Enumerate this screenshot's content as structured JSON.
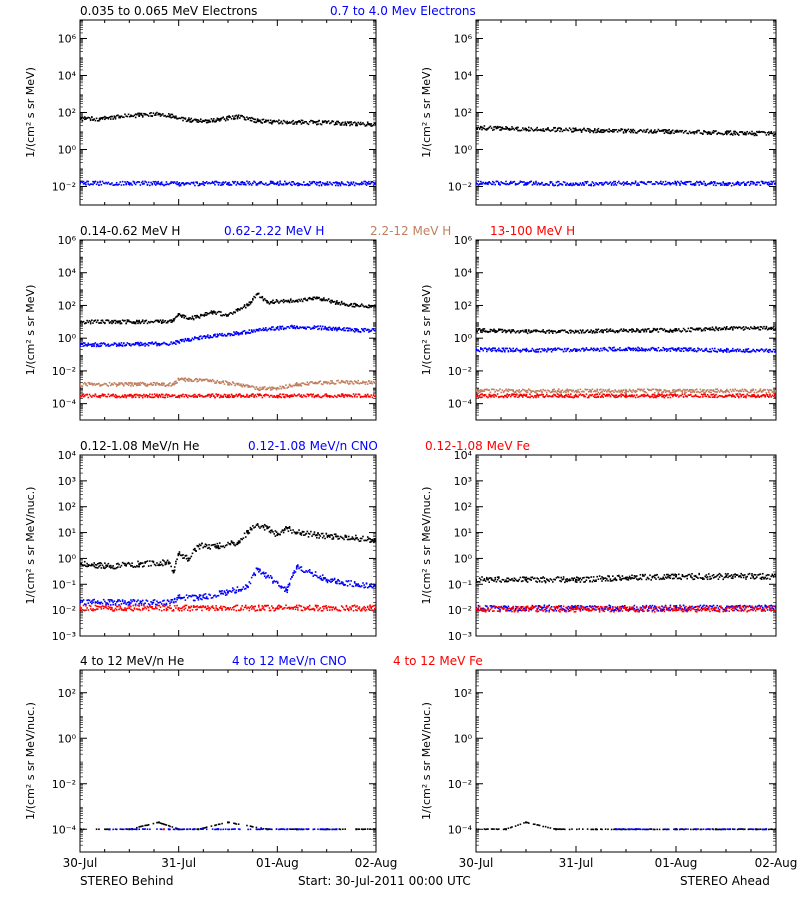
{
  "chart_data": [
    {
      "type": "scatter",
      "panel": "electrons-behind",
      "spacecraft": "STEREO Behind",
      "yscale": "log",
      "ylim": [
        0.001,
        10000000
      ],
      "ylabel": "1/(cm² s sr MeV)",
      "ytick_labels": [
        "10⁶",
        "10⁴",
        "10²",
        "10⁰",
        "10⁻²"
      ],
      "ytick_values": [
        1000000,
        10000,
        100,
        1,
        0.01
      ],
      "xlim": [
        0,
        3
      ],
      "legend": [
        {
          "label": "0.035 to 0.065 MeV Electrons",
          "color": "#000000"
        },
        {
          "label": "0.7 to 4.0 Mev Electrons",
          "color": "#0000ff"
        }
      ],
      "series": [
        {
          "name": "0.035 to 0.065 MeV Electrons",
          "color": "#000000",
          "x": [
            0,
            0.2,
            0.4,
            0.6,
            0.8,
            0.95,
            1.1,
            1.25,
            1.4,
            1.6,
            1.8,
            1.95,
            2.2,
            2.5,
            2.8,
            3.0
          ],
          "y": [
            45,
            45,
            60,
            70,
            85,
            60,
            40,
            35,
            40,
            60,
            35,
            30,
            30,
            28,
            25,
            22
          ]
        },
        {
          "name": "0.7 to 4.0 Mev Electrons",
          "color": "#0000ff",
          "x": [
            0,
            0.5,
            1.0,
            1.5,
            2.0,
            2.5,
            3.0
          ],
          "y": [
            0.015,
            0.015,
            0.014,
            0.015,
            0.015,
            0.014,
            0.015
          ]
        }
      ]
    },
    {
      "type": "scatter",
      "panel": "electrons-ahead",
      "spacecraft": "STEREO Ahead",
      "yscale": "log",
      "ylim": [
        0.001,
        10000000
      ],
      "ylabel": "1/(cm² s sr MeV)",
      "ytick_labels": [
        "10⁶",
        "10⁴",
        "10²",
        "10⁰",
        "10⁻²"
      ],
      "ytick_values": [
        1000000,
        10000,
        100,
        1,
        0.01
      ],
      "xlim": [
        0,
        3
      ],
      "series": [
        {
          "name": "0.035 to 0.065 MeV Electrons",
          "color": "#000000",
          "x": [
            0,
            0.5,
            1.0,
            1.5,
            2.0,
            2.5,
            3.0
          ],
          "y": [
            15,
            13,
            11,
            10,
            9,
            8,
            7
          ]
        },
        {
          "name": "0.7 to 4.0 Mev Electrons",
          "color": "#0000ff",
          "x": [
            0,
            0.5,
            1.0,
            1.5,
            2.0,
            2.5,
            3.0
          ],
          "y": [
            0.015,
            0.015,
            0.014,
            0.015,
            0.015,
            0.014,
            0.015
          ]
        }
      ]
    },
    {
      "type": "scatter",
      "panel": "protons-behind",
      "spacecraft": "STEREO Behind",
      "yscale": "log",
      "ylim": [
        1e-05,
        1000000
      ],
      "ylabel": "1/(cm² s sr MeV)",
      "ytick_labels": [
        "10⁶",
        "10⁴",
        "10²",
        "10⁰",
        "10⁻²",
        "10⁻⁴"
      ],
      "ytick_values": [
        1000000,
        10000,
        100,
        1,
        0.01,
        0.0001
      ],
      "xlim": [
        0,
        3
      ],
      "legend": [
        {
          "label": "0.14-0.62 MeV H",
          "color": "#000000"
        },
        {
          "label": "0.62-2.22 MeV H",
          "color": "#0000ff"
        },
        {
          "label": "2.2-12 MeV H",
          "color": "#c08060"
        },
        {
          "label": "13-100 MeV H",
          "color": "#ff0000"
        }
      ],
      "series": [
        {
          "name": "0.14-0.62 MeV H",
          "color": "#000000",
          "x": [
            0,
            0.4,
            0.8,
            0.95,
            1.0,
            1.1,
            1.2,
            1.35,
            1.5,
            1.6,
            1.7,
            1.8,
            1.9,
            2.0,
            2.2,
            2.4,
            2.6,
            2.8,
            3.0
          ],
          "y": [
            10,
            10,
            10,
            12,
            30,
            15,
            20,
            40,
            25,
            60,
            100,
            500,
            150,
            180,
            200,
            300,
            150,
            100,
            90
          ]
        },
        {
          "name": "0.62-2.22 MeV H",
          "color": "#0000ff",
          "x": [
            0,
            0.4,
            0.8,
            0.95,
            1.0,
            1.1,
            1.2,
            1.4,
            1.6,
            1.8,
            2.0,
            2.2,
            2.5,
            2.8,
            3.0
          ],
          "y": [
            0.4,
            0.4,
            0.45,
            0.5,
            0.6,
            0.8,
            1,
            1.5,
            2,
            3,
            4,
            5,
            4,
            3,
            3
          ]
        },
        {
          "name": "2.2-12 MeV H",
          "color": "#c08060",
          "x": [
            0,
            0.4,
            0.8,
            0.95,
            1.0,
            1.3,
            1.6,
            1.8,
            2.0,
            2.2,
            2.5,
            2.8,
            3.0
          ],
          "y": [
            0.0015,
            0.0015,
            0.0015,
            0.0015,
            0.003,
            0.0025,
            0.0015,
            0.0008,
            0.0009,
            0.0015,
            0.002,
            0.002,
            0.002
          ]
        },
        {
          "name": "13-100 MeV H",
          "color": "#ff0000",
          "x": [
            0,
            0.5,
            1.0,
            1.5,
            2.0,
            2.5,
            3.0
          ],
          "y": [
            0.0003,
            0.0003,
            0.0003,
            0.0003,
            0.0003,
            0.0003,
            0.0003
          ]
        }
      ]
    },
    {
      "type": "scatter",
      "panel": "protons-ahead",
      "spacecraft": "STEREO Ahead",
      "yscale": "log",
      "ylim": [
        1e-05,
        1000000
      ],
      "ylabel": "1/(cm² s sr MeV)",
      "ytick_labels": [
        "10⁶",
        "10⁴",
        "10²",
        "10⁰",
        "10⁻²",
        "10⁻⁴"
      ],
      "ytick_values": [
        1000000,
        10000,
        100,
        1,
        0.01,
        0.0001
      ],
      "xlim": [
        0,
        3
      ],
      "series": [
        {
          "name": "0.14-0.62 MeV H",
          "color": "#000000",
          "x": [
            0,
            0.5,
            1.0,
            1.5,
            2.0,
            2.5,
            3.0
          ],
          "y": [
            3,
            2.5,
            2.5,
            3,
            3,
            4,
            4
          ]
        },
        {
          "name": "0.62-2.22 MeV H",
          "color": "#0000ff",
          "x": [
            0,
            0.5,
            1.0,
            1.5,
            2.0,
            2.5,
            3.0
          ],
          "y": [
            0.2,
            0.18,
            0.2,
            0.22,
            0.2,
            0.18,
            0.17
          ]
        },
        {
          "name": "2.2-12 MeV H",
          "color": "#c08060",
          "x": [
            0,
            0.5,
            1.0,
            1.5,
            2.0,
            2.5,
            3.0
          ],
          "y": [
            0.0006,
            0.0006,
            0.0006,
            0.0006,
            0.0006,
            0.0006,
            0.0006
          ]
        },
        {
          "name": "13-100 MeV H",
          "color": "#ff0000",
          "x": [
            0,
            0.5,
            1.0,
            1.5,
            2.0,
            2.5,
            3.0
          ],
          "y": [
            0.0003,
            0.0003,
            0.0003,
            0.0003,
            0.0003,
            0.0003,
            0.0003
          ]
        }
      ]
    },
    {
      "type": "scatter",
      "panel": "ions-low-behind",
      "spacecraft": "STEREO Behind",
      "yscale": "log",
      "ylim": [
        0.001,
        10000
      ],
      "ylabel": "1/(cm² s sr MeV/nuc.)",
      "ytick_labels": [
        "10⁴",
        "10³",
        "10²",
        "10¹",
        "10⁰",
        "10⁻¹",
        "10⁻²",
        "10⁻³"
      ],
      "ytick_values": [
        10000,
        1000,
        100,
        10,
        1,
        0.1,
        0.01,
        0.001
      ],
      "xlim": [
        0,
        3
      ],
      "legend": [
        {
          "label": "0.12-1.08 MeV/n He",
          "color": "#000000"
        },
        {
          "label": "0.12-1.08 MeV/n CNO",
          "color": "#0000ff"
        },
        {
          "label": "0.12-1.08 MeV Fe",
          "color": "#ff0000"
        }
      ],
      "series": [
        {
          "name": "0.12-1.08 MeV/n He",
          "color": "#000000",
          "x": [
            0,
            0.3,
            0.6,
            0.9,
            0.95,
            1.0,
            1.1,
            1.2,
            1.4,
            1.6,
            1.7,
            1.8,
            1.9,
            2.0,
            2.1,
            2.2,
            2.4,
            2.6,
            2.8,
            3.0
          ],
          "y": [
            0.6,
            0.5,
            0.6,
            0.7,
            0.3,
            1.5,
            1,
            3,
            3,
            4,
            10,
            20,
            15,
            8,
            15,
            10,
            8,
            7,
            6,
            5
          ]
        },
        {
          "name": "0.12-1.08 MeV/n CNO",
          "color": "#0000ff",
          "x": [
            0,
            0.5,
            0.95,
            1.0,
            1.2,
            1.5,
            1.7,
            1.8,
            1.9,
            2.1,
            2.2,
            2.5,
            2.8,
            3.0
          ],
          "y": [
            0.02,
            0.02,
            0.02,
            0.03,
            0.03,
            0.05,
            0.08,
            0.4,
            0.2,
            0.06,
            0.5,
            0.15,
            0.1,
            0.08
          ]
        },
        {
          "name": "0.12-1.08 MeV Fe",
          "color": "#ff0000",
          "x": [
            0,
            0.5,
            1.0,
            1.5,
            2.0,
            2.5,
            3.0
          ],
          "y": [
            0.012,
            0.012,
            0.012,
            0.012,
            0.012,
            0.012,
            0.012
          ]
        }
      ]
    },
    {
      "type": "scatter",
      "panel": "ions-low-ahead",
      "spacecraft": "STEREO Ahead",
      "yscale": "log",
      "ylim": [
        0.001,
        10000
      ],
      "ylabel": "1/(cm² s sr MeV/nuc.)",
      "ytick_labels": [
        "10⁴",
        "10³",
        "10²",
        "10¹",
        "10⁰",
        "10⁻¹",
        "10⁻²",
        "10⁻³"
      ],
      "ytick_values": [
        10000,
        1000,
        100,
        10,
        1,
        0.1,
        0.01,
        0.001
      ],
      "xlim": [
        0,
        3
      ],
      "series": [
        {
          "name": "0.12-1.08 MeV/n He",
          "color": "#000000",
          "x": [
            0,
            0.5,
            1.0,
            1.5,
            2.0,
            2.5,
            3.0
          ],
          "y": [
            0.15,
            0.15,
            0.15,
            0.18,
            0.2,
            0.2,
            0.2
          ]
        },
        {
          "name": "0.12-1.08 MeV/n CNO",
          "color": "#0000ff",
          "x": [
            0,
            0.5,
            1.0,
            1.5,
            2.0,
            2.5,
            3.0
          ],
          "y": [
            0.012,
            0.012,
            0.012,
            0.012,
            0.012,
            0.012,
            0.012
          ]
        },
        {
          "name": "0.12-1.08 MeV Fe",
          "color": "#ff0000",
          "x": [
            0,
            0.5,
            1.0,
            1.5,
            2.0,
            2.5,
            3.0
          ],
          "y": [
            0.011,
            0.011,
            0.011,
            0.011,
            0.011,
            0.011,
            0.011
          ]
        }
      ]
    },
    {
      "type": "scatter",
      "panel": "ions-high-behind",
      "spacecraft": "STEREO Behind",
      "yscale": "log",
      "ylim": [
        1e-05,
        1000
      ],
      "ylabel": "1/(cm² s sr MeV/nuc.)",
      "ytick_labels": [
        "10²",
        "10⁰",
        "10⁻²",
        "10⁻⁴"
      ],
      "ytick_values": [
        100,
        1,
        0.01,
        0.0001
      ],
      "xlim": [
        0,
        3
      ],
      "xtick_labels": [
        "30-Jul",
        "31-Jul",
        "01-Aug",
        "02-Aug"
      ],
      "xtick_values": [
        0,
        1,
        2,
        3
      ],
      "legend": [
        {
          "label": "4 to 12 MeV/n He",
          "color": "#000000"
        },
        {
          "label": "4 to 12 MeV/n CNO",
          "color": "#0000ff"
        },
        {
          "label": "4 to 12 MeV Fe",
          "color": "#ff0000"
        }
      ],
      "series": [
        {
          "name": "4 to 12 MeV/n He",
          "color": "#000000",
          "x": [
            0,
            0.5,
            0.8,
            1.0,
            1.2,
            1.5,
            1.9,
            2.2,
            2.5,
            2.8,
            3.0
          ],
          "y": [
            0.0001,
            0.0001,
            0.0002,
            0.0001,
            0.0001,
            0.0002,
            0.0001,
            0.0001,
            0.0001,
            0.0001,
            0.0001
          ]
        },
        {
          "name": "4 to 12 MeV/n CNO",
          "color": "#0000ff",
          "x": [
            0.3,
            0.9,
            1.4,
            2.1,
            2.6
          ],
          "y": [
            0.0001,
            0.0001,
            0.0001,
            0.0001,
            0.0001
          ]
        },
        {
          "name": "4 to 12 MeV Fe",
          "color": "#ff0000",
          "x": [
            0.85
          ],
          "y": [
            0.0001
          ]
        }
      ]
    },
    {
      "type": "scatter",
      "panel": "ions-high-ahead",
      "spacecraft": "STEREO Ahead",
      "yscale": "log",
      "ylim": [
        1e-05,
        1000
      ],
      "ylabel": "1/(cm² s sr MeV/nuc.)",
      "ytick_labels": [
        "10²",
        "10⁰",
        "10⁻²",
        "10⁻⁴"
      ],
      "ytick_values": [
        100,
        1,
        0.01,
        0.0001
      ],
      "xlim": [
        0,
        3
      ],
      "xtick_labels": [
        "30-Jul",
        "31-Jul",
        "01-Aug",
        "02-Aug"
      ],
      "xtick_values": [
        0,
        1,
        2,
        3
      ],
      "series": [
        {
          "name": "4 to 12 MeV/n He",
          "color": "#000000",
          "x": [
            0,
            0.3,
            0.5,
            0.8,
            1.2,
            1.6,
            2.0,
            2.4,
            2.8,
            3.0
          ],
          "y": [
            0.0001,
            0.0001,
            0.0002,
            0.0001,
            0.0001,
            0.0001,
            0.0001,
            0.0001,
            0.0001,
            0.0001
          ]
        },
        {
          "name": "4 to 12 MeV/n CNO",
          "color": "#0000ff",
          "x": [
            1.4,
            2.2,
            2.9
          ],
          "y": [
            0.0001,
            0.0001,
            0.0001
          ]
        }
      ]
    }
  ],
  "footer": {
    "left": "STEREO Behind",
    "center": "Start: 30-Jul-2011 00:00 UTC",
    "right": "STEREO Ahead"
  }
}
